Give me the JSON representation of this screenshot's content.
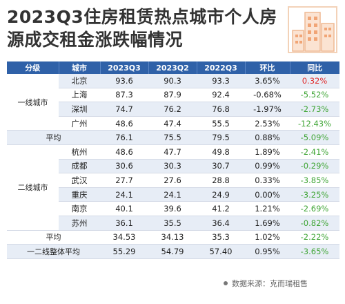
{
  "title": {
    "line1": "2023Q3住房租赁热点城市个人房",
    "line2": "源成交租金涨跌幅情况"
  },
  "colors": {
    "header_bg": "#2f61a8",
    "row_alt": "#e7edf6",
    "negative": "#3fa535",
    "positive": "#e02a2a"
  },
  "table": {
    "headers": [
      "分级",
      "城市",
      "2023Q3",
      "2023Q2",
      "2022Q3",
      "环比",
      "同比"
    ],
    "groups": {
      "tier1": "一线城市",
      "tier2": "二线城市"
    },
    "rows": [
      {
        "city": "北京",
        "q3_2023": "93.6",
        "q2_2023": "90.3",
        "q3_2022": "93.3",
        "qoq": "3.65%",
        "yoy": "0.32%",
        "yoy_sign": "pos"
      },
      {
        "city": "上海",
        "q3_2023": "87.3",
        "q2_2023": "87.9",
        "q3_2022": "92.4",
        "qoq": "-0.68%",
        "yoy": "-5.52%",
        "yoy_sign": "neg"
      },
      {
        "city": "深圳",
        "q3_2023": "74.7",
        "q2_2023": "76.2",
        "q3_2022": "76.8",
        "qoq": "-1.97%",
        "yoy": "-2.73%",
        "yoy_sign": "neg"
      },
      {
        "city": "广州",
        "q3_2023": "48.6",
        "q2_2023": "47.4",
        "q3_2022": "55.5",
        "qoq": "2.53%",
        "yoy": "-12.43%",
        "yoy_sign": "neg"
      },
      {
        "label": "平均",
        "q3_2023": "76.1",
        "q2_2023": "75.5",
        "q3_2022": "79.5",
        "qoq": "0.88%",
        "yoy": "-5.09%",
        "yoy_sign": "neg"
      },
      {
        "city": "杭州",
        "q3_2023": "48.6",
        "q2_2023": "47.7",
        "q3_2022": "49.8",
        "qoq": "1.89%",
        "yoy": "-2.41%",
        "yoy_sign": "neg"
      },
      {
        "city": "成都",
        "q3_2023": "30.6",
        "q2_2023": "30.3",
        "q3_2022": "30.7",
        "qoq": "0.99%",
        "yoy": "-0.29%",
        "yoy_sign": "neg"
      },
      {
        "city": "武汉",
        "q3_2023": "27.7",
        "q2_2023": "27.6",
        "q3_2022": "28.8",
        "qoq": "0.33%",
        "yoy": "-3.85%",
        "yoy_sign": "neg"
      },
      {
        "city": "重庆",
        "q3_2023": "24.1",
        "q2_2023": "24.1",
        "q3_2022": "24.9",
        "qoq": "0.00%",
        "yoy": "-3.25%",
        "yoy_sign": "neg"
      },
      {
        "city": "南京",
        "q3_2023": "40.1",
        "q2_2023": "39.6",
        "q3_2022": "41.2",
        "qoq": "1.21%",
        "yoy": "-2.69%",
        "yoy_sign": "neg"
      },
      {
        "city": "苏州",
        "q3_2023": "36.1",
        "q2_2023": "35.5",
        "q3_2022": "36.4",
        "qoq": "1.69%",
        "yoy": "-0.82%",
        "yoy_sign": "neg"
      },
      {
        "label": "平均",
        "q3_2023": "34.53",
        "q2_2023": "34.13",
        "q3_2022": "35.3",
        "qoq": "1.02%",
        "yoy": "-2.22%",
        "yoy_sign": "neg"
      },
      {
        "label": "一二线整体平均",
        "q3_2023": "55.29",
        "q2_2023": "54.79",
        "q3_2022": "57.40",
        "qoq": "0.95%",
        "yoy": "-3.65%",
        "yoy_sign": "neg"
      }
    ]
  },
  "source": "数据来源：克而瑞租售",
  "icons": {
    "logo": "building-icon",
    "source_dot": "bullet-icon"
  }
}
